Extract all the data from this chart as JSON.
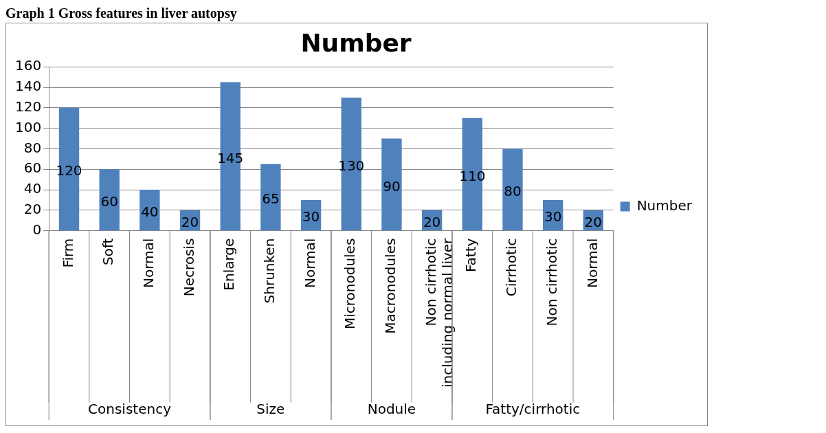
{
  "chart_data": {
    "type": "bar",
    "title": "Graph 1 Gross features in liver autopsy",
    "subtitle": "Number",
    "categories": [
      "Firm",
      "Soft",
      "Normal",
      "Necrosis",
      "Enlarge",
      "Shrunken",
      "Normal",
      "Micronodules",
      "Macronodules",
      "Non cirrhotic including normal liver",
      "Fatty",
      "Cirrhotic",
      "Non cirrhotic",
      "Normal"
    ],
    "series": [
      {
        "name": "Number",
        "color": "#4f81bd",
        "values": [
          120,
          60,
          40,
          20,
          145,
          65,
          30,
          130,
          90,
          20,
          110,
          80,
          30,
          20
        ]
      }
    ],
    "annotations": [
      "Consistency",
      "Size",
      "Nodule",
      "Fatty/cirrhotic"
    ],
    "ylim": [
      0,
      160
    ],
    "yticks": [
      0,
      20,
      40,
      60,
      80,
      100,
      120,
      140,
      160
    ],
    "grid": "y",
    "legend": "right",
    "data_labels": true
  }
}
